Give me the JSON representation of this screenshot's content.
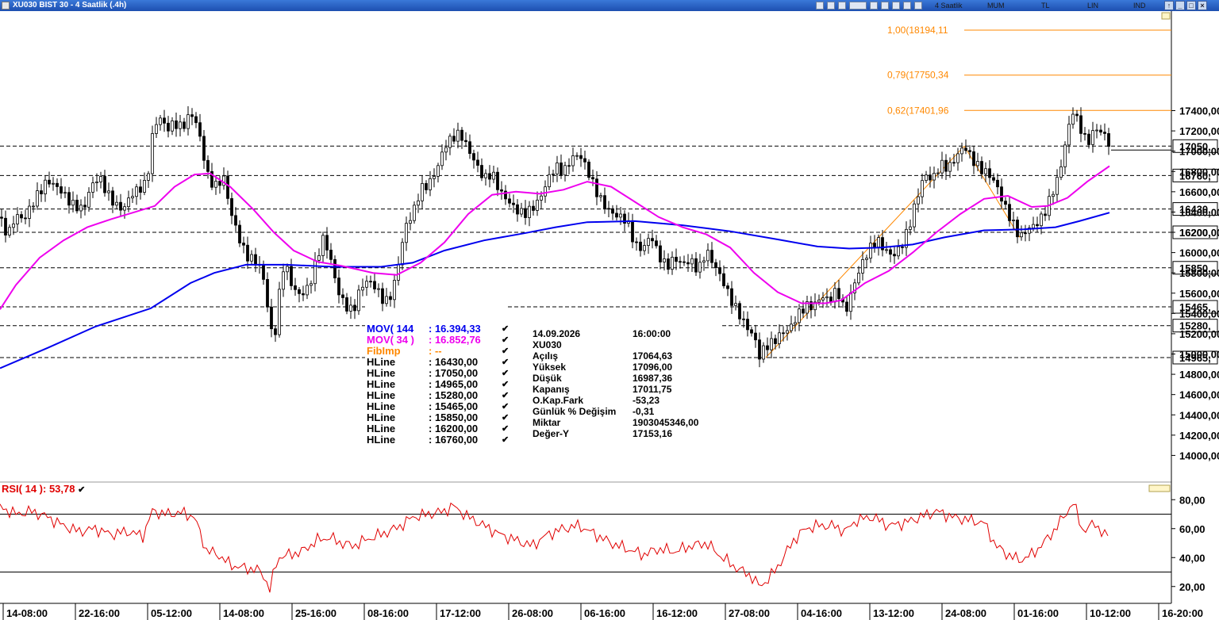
{
  "window": {
    "title": "XU030 BIST 30 - 4 Saatlik (.4h)",
    "toolbar_modes": [
      "4 Saatlik",
      "MUM",
      "TL",
      "LIN",
      "IND"
    ]
  },
  "chart_data": {
    "type": "candlestick",
    "symbol": "XU030",
    "ylim": [
      13800,
      18350
    ],
    "y_ticks": [
      14000,
      14200,
      14400,
      14600,
      14800,
      15000,
      15200,
      15400,
      15600,
      15800,
      16000,
      16200,
      16400,
      16600,
      16800,
      17000,
      17200,
      17400
    ],
    "y_tick_labels": [
      "14000,00",
      "14200,00",
      "14400,00",
      "14600,00",
      "14800,00",
      "15000,00",
      "15200,00",
      "15400,00",
      "15600,00",
      "15800,00",
      "16000,00",
      "16200,00",
      "16400,00",
      "16600,00",
      "16800,00",
      "17000,00",
      "17200,00",
      "17400,00"
    ],
    "x_tick_labels": [
      "14-08:00",
      "22-16:00",
      "05-12:00",
      "14-08:00",
      "25-16:00",
      "08-16:00",
      "17-12:00",
      "26-08:00",
      "06-16:00",
      "16-12:00",
      "27-08:00",
      "04-16:00",
      "13-12:00",
      "24-08:00",
      "01-16:00",
      "10-12:00",
      "16-20:00"
    ],
    "price_path": [
      [
        0,
        16350
      ],
      [
        10,
        16200
      ],
      [
        20,
        16400
      ],
      [
        30,
        16350
      ],
      [
        45,
        16550
      ],
      [
        60,
        16700
      ],
      [
        75,
        16600
      ],
      [
        90,
        16450
      ],
      [
        105,
        16400
      ],
      [
        115,
        16650
      ],
      [
        125,
        16750
      ],
      [
        135,
        16600
      ],
      [
        145,
        16500
      ],
      [
        155,
        16450
      ],
      [
        165,
        16600
      ],
      [
        175,
        16650
      ],
      [
        185,
        16700
      ],
      [
        192,
        17150
      ],
      [
        200,
        17350
      ],
      [
        210,
        17200
      ],
      [
        220,
        17250
      ],
      [
        230,
        17200
      ],
      [
        240,
        17350
      ],
      [
        248,
        17250
      ],
      [
        255,
        17000
      ],
      [
        262,
        16750
      ],
      [
        270,
        16650
      ],
      [
        282,
        16750
      ],
      [
        290,
        16450
      ],
      [
        300,
        16200
      ],
      [
        310,
        16000
      ],
      [
        320,
        15950
      ],
      [
        330,
        15850
      ],
      [
        335,
        15600
      ],
      [
        340,
        15300
      ],
      [
        345,
        15100
      ],
      [
        350,
        15400
      ],
      [
        355,
        15850
      ],
      [
        362,
        15800
      ],
      [
        370,
        15600
      ],
      [
        380,
        15550
      ],
      [
        390,
        15650
      ],
      [
        400,
        15950
      ],
      [
        408,
        16150
      ],
      [
        418,
        15900
      ],
      [
        425,
        15650
      ],
      [
        435,
        15500
      ],
      [
        445,
        15450
      ],
      [
        455,
        15700
      ],
      [
        465,
        15750
      ],
      [
        475,
        15650
      ],
      [
        485,
        15500
      ],
      [
        495,
        15600
      ],
      [
        505,
        16000
      ],
      [
        512,
        16250
      ],
      [
        520,
        16350
      ],
      [
        530,
        16600
      ],
      [
        540,
        16650
      ],
      [
        550,
        16800
      ],
      [
        560,
        17050
      ],
      [
        570,
        17150
      ],
      [
        580,
        17200
      ],
      [
        590,
        17050
      ],
      [
        600,
        16900
      ],
      [
        610,
        16750
      ],
      [
        620,
        16800
      ],
      [
        630,
        16600
      ],
      [
        640,
        16500
      ],
      [
        650,
        16400
      ],
      [
        660,
        16350
      ],
      [
        670,
        16400
      ],
      [
        680,
        16500
      ],
      [
        690,
        16700
      ],
      [
        700,
        16850
      ],
      [
        710,
        16800
      ],
      [
        720,
        16950
      ],
      [
        730,
        17000
      ],
      [
        740,
        16850
      ],
      [
        750,
        16650
      ],
      [
        760,
        16500
      ],
      [
        770,
        16400
      ],
      [
        780,
        16350
      ],
      [
        790,
        16300
      ],
      [
        800,
        16050
      ],
      [
        810,
        16000
      ],
      [
        820,
        16150
      ],
      [
        830,
        15950
      ],
      [
        840,
        15850
      ],
      [
        850,
        15950
      ],
      [
        860,
        15900
      ],
      [
        870,
        15950
      ],
      [
        880,
        15850
      ],
      [
        890,
        16050
      ],
      [
        900,
        15900
      ],
      [
        910,
        15750
      ],
      [
        920,
        15550
      ],
      [
        930,
        15400
      ],
      [
        940,
        15250
      ],
      [
        950,
        15150
      ],
      [
        957,
        14950
      ],
      [
        965,
        15050
      ],
      [
        975,
        15100
      ],
      [
        985,
        15200
      ],
      [
        995,
        15250
      ],
      [
        1005,
        15400
      ],
      [
        1015,
        15500
      ],
      [
        1025,
        15500
      ],
      [
        1035,
        15600
      ],
      [
        1045,
        15550
      ],
      [
        1055,
        15650
      ],
      [
        1065,
        15400
      ],
      [
        1075,
        15650
      ],
      [
        1085,
        15850
      ],
      [
        1095,
        16000
      ],
      [
        1105,
        16100
      ],
      [
        1115,
        16000
      ],
      [
        1125,
        15950
      ],
      [
        1135,
        16050
      ],
      [
        1145,
        16250
      ],
      [
        1155,
        16550
      ],
      [
        1165,
        16800
      ],
      [
        1175,
        16750
      ],
      [
        1185,
        16900
      ],
      [
        1195,
        16850
      ],
      [
        1205,
        16950
      ],
      [
        1215,
        17050
      ],
      [
        1225,
        16900
      ],
      [
        1235,
        16800
      ],
      [
        1245,
        16750
      ],
      [
        1255,
        16650
      ],
      [
        1265,
        16450
      ],
      [
        1275,
        16300
      ],
      [
        1285,
        16150
      ],
      [
        1295,
        16250
      ],
      [
        1305,
        16300
      ],
      [
        1315,
        16400
      ],
      [
        1325,
        16600
      ],
      [
        1335,
        16800
      ],
      [
        1345,
        17200
      ],
      [
        1352,
        17400
      ],
      [
        1360,
        17250
      ],
      [
        1370,
        17050
      ],
      [
        1380,
        17200
      ],
      [
        1390,
        17150
      ],
      [
        1400,
        17011
      ]
    ],
    "rsi_path": [
      [
        0,
        75
      ],
      [
        20,
        70
      ],
      [
        40,
        72
      ],
      [
        60,
        68
      ],
      [
        80,
        62
      ],
      [
        100,
        58
      ],
      [
        120,
        60
      ],
      [
        140,
        56
      ],
      [
        160,
        58
      ],
      [
        180,
        55
      ],
      [
        192,
        72
      ],
      [
        210,
        70
      ],
      [
        230,
        71
      ],
      [
        245,
        68
      ],
      [
        260,
        45
      ],
      [
        275,
        42
      ],
      [
        290,
        35
      ],
      [
        305,
        33
      ],
      [
        320,
        32
      ],
      [
        330,
        30
      ],
      [
        340,
        18
      ],
      [
        350,
        40
      ],
      [
        365,
        42
      ],
      [
        380,
        44
      ],
      [
        400,
        52
      ],
      [
        415,
        54
      ],
      [
        430,
        50
      ],
      [
        445,
        48
      ],
      [
        460,
        52
      ],
      [
        475,
        55
      ],
      [
        490,
        58
      ],
      [
        505,
        62
      ],
      [
        520,
        68
      ],
      [
        540,
        70
      ],
      [
        560,
        72
      ],
      [
        570,
        76
      ],
      [
        590,
        68
      ],
      [
        610,
        62
      ],
      [
        630,
        56
      ],
      [
        650,
        52
      ],
      [
        670,
        48
      ],
      [
        690,
        56
      ],
      [
        710,
        60
      ],
      [
        730,
        62
      ],
      [
        750,
        56
      ],
      [
        770,
        50
      ],
      [
        790,
        46
      ],
      [
        810,
        42
      ],
      [
        830,
        46
      ],
      [
        850,
        44
      ],
      [
        870,
        48
      ],
      [
        890,
        50
      ],
      [
        910,
        40
      ],
      [
        930,
        32
      ],
      [
        945,
        28
      ],
      [
        957,
        20
      ],
      [
        970,
        26
      ],
      [
        985,
        38
      ],
      [
        1000,
        52
      ],
      [
        1015,
        60
      ],
      [
        1030,
        62
      ],
      [
        1050,
        62
      ],
      [
        1065,
        58
      ],
      [
        1080,
        66
      ],
      [
        1100,
        68
      ],
      [
        1120,
        62
      ],
      [
        1140,
        64
      ],
      [
        1160,
        68
      ],
      [
        1180,
        72
      ],
      [
        1200,
        68
      ],
      [
        1220,
        66
      ],
      [
        1240,
        64
      ],
      [
        1255,
        48
      ],
      [
        1270,
        42
      ],
      [
        1285,
        38
      ],
      [
        1300,
        42
      ],
      [
        1315,
        50
      ],
      [
        1330,
        60
      ],
      [
        1345,
        72
      ],
      [
        1352,
        78
      ],
      [
        1365,
        58
      ],
      [
        1380,
        64
      ],
      [
        1390,
        56
      ],
      [
        1398,
        54
      ]
    ],
    "mov144_path": [
      [
        0,
        14860
      ],
      [
        60,
        15060
      ],
      [
        120,
        15270
      ],
      [
        190,
        15450
      ],
      [
        240,
        15700
      ],
      [
        270,
        15800
      ],
      [
        310,
        15880
      ],
      [
        360,
        15880
      ],
      [
        420,
        15860
      ],
      [
        480,
        15860
      ],
      [
        520,
        15900
      ],
      [
        560,
        16020
      ],
      [
        610,
        16120
      ],
      [
        660,
        16190
      ],
      [
        700,
        16250
      ],
      [
        740,
        16300
      ],
      [
        800,
        16310
      ],
      [
        860,
        16270
      ],
      [
        920,
        16210
      ],
      [
        980,
        16130
      ],
      [
        1030,
        16060
      ],
      [
        1070,
        16040
      ],
      [
        1110,
        16050
      ],
      [
        1150,
        16080
      ],
      [
        1190,
        16150
      ],
      [
        1240,
        16220
      ],
      [
        1290,
        16230
      ],
      [
        1330,
        16250
      ],
      [
        1360,
        16310
      ],
      [
        1398,
        16394
      ]
    ],
    "mov34_path": [
      [
        0,
        15440
      ],
      [
        20,
        15680
      ],
      [
        50,
        15950
      ],
      [
        80,
        16120
      ],
      [
        110,
        16250
      ],
      [
        140,
        16330
      ],
      [
        170,
        16400
      ],
      [
        195,
        16460
      ],
      [
        220,
        16650
      ],
      [
        245,
        16770
      ],
      [
        265,
        16780
      ],
      [
        290,
        16650
      ],
      [
        320,
        16420
      ],
      [
        345,
        16200
      ],
      [
        370,
        16020
      ],
      [
        400,
        15910
      ],
      [
        430,
        15870
      ],
      [
        470,
        15800
      ],
      [
        500,
        15780
      ],
      [
        530,
        15900
      ],
      [
        560,
        16100
      ],
      [
        590,
        16380
      ],
      [
        620,
        16570
      ],
      [
        650,
        16600
      ],
      [
        680,
        16580
      ],
      [
        710,
        16620
      ],
      [
        740,
        16700
      ],
      [
        770,
        16650
      ],
      [
        800,
        16500
      ],
      [
        830,
        16350
      ],
      [
        860,
        16250
      ],
      [
        890,
        16180
      ],
      [
        920,
        16050
      ],
      [
        950,
        15800
      ],
      [
        980,
        15610
      ],
      [
        1010,
        15500
      ],
      [
        1040,
        15500
      ],
      [
        1060,
        15530
      ],
      [
        1090,
        15700
      ],
      [
        1120,
        15820
      ],
      [
        1150,
        16000
      ],
      [
        1180,
        16200
      ],
      [
        1210,
        16380
      ],
      [
        1240,
        16530
      ],
      [
        1270,
        16560
      ],
      [
        1300,
        16450
      ],
      [
        1320,
        16460
      ],
      [
        1345,
        16540
      ],
      [
        1370,
        16700
      ],
      [
        1398,
        16853
      ]
    ],
    "hlines": [
      16430.0,
      17050.0,
      14965.0,
      15280.0,
      15465.0,
      15850.0,
      16200.0,
      16760.0
    ],
    "hline_tags": [
      "17050,",
      "16760,",
      "16430,",
      "16200,",
      "15850,",
      "15465,",
      "15280,",
      "14965,"
    ],
    "hline_tag_values": [
      17050,
      16760,
      16430,
      16200,
      15850,
      15465,
      15280,
      14965
    ],
    "fib_levels": [
      {
        "label": "1,00(18194,11",
        "value": 18194.11
      },
      {
        "label": "0,79(17750,34",
        "value": 17750.34
      },
      {
        "label": "0,62(17401,96",
        "value": 17401.96
      }
    ],
    "legend": [
      {
        "name": "MOV( 144",
        "value": ": 16.394,33",
        "color": "#0000ee"
      },
      {
        "name": "MOV( 34 )",
        "value": ": 16.852,76",
        "color": "#ee00ee"
      },
      {
        "name": "FibImp",
        "value": ": --",
        "color": "#ff8800"
      },
      {
        "name": "HLine",
        "value": ": 16430,00",
        "color": "#000000"
      },
      {
        "name": "HLine",
        "value": ": 17050,00",
        "color": "#000000"
      },
      {
        "name": "HLine",
        "value": ": 14965,00",
        "color": "#000000"
      },
      {
        "name": "HLine",
        "value": ": 15280,00",
        "color": "#000000"
      },
      {
        "name": "HLine",
        "value": ": 15465,00",
        "color": "#000000"
      },
      {
        "name": "HLine",
        "value": ": 15850,00",
        "color": "#000000"
      },
      {
        "name": "HLine",
        "value": ": 16200,00",
        "color": "#000000"
      },
      {
        "name": "HLine",
        "value": ": 16760,00",
        "color": "#000000"
      }
    ],
    "info": {
      "date": "14.09.2026",
      "time": "16:00:00",
      "symbol": "XU030",
      "rows": [
        {
          "label": "Açılış",
          "value": "17064,63"
        },
        {
          "label": "Yüksek",
          "value": "17096,00"
        },
        {
          "label": "Düşük",
          "value": "16987,36"
        },
        {
          "label": "Kapanış",
          "value": "17011,75"
        },
        {
          "label": "O.Kap.Fark",
          "value": "-53,23"
        },
        {
          "label": "Günlük % Değişim",
          "value": "-0,31"
        },
        {
          "label": "Miktar",
          "value": "1903045346,00"
        },
        {
          "label": "Değer-Y",
          "value": "17153,16"
        }
      ]
    },
    "rsi": {
      "label": "RSI( 14 ): 53,78",
      "ylim": [
        10,
        90
      ],
      "ticks": [
        20,
        40,
        60,
        80
      ],
      "tick_labels": [
        "20,00",
        "40,00",
        "60,00",
        "80,00"
      ],
      "levels": [
        30,
        70
      ]
    },
    "colors": {
      "up": "#ffffff",
      "down": "#000000",
      "mov144": "#0000ee",
      "mov34": "#ee00ee",
      "fib": "#ff8800",
      "rsi": "#e00000"
    }
  }
}
